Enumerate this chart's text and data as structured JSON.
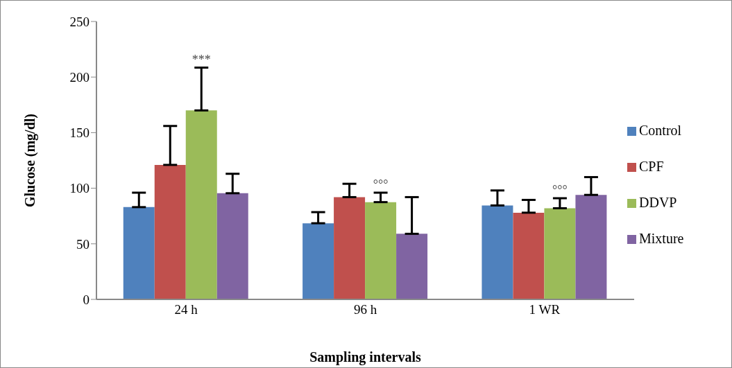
{
  "chart_data": {
    "type": "bar",
    "xlabel": "Sampling intervals",
    "ylabel": "Glucose (mg/dl)",
    "categories": [
      "24 h",
      "96 h",
      "1 WR"
    ],
    "series": [
      {
        "name": "Control",
        "color": "#4f81bd",
        "values": [
          83,
          68.5,
          84.5
        ],
        "errors": [
          [
            83,
            96
          ],
          [
            68.5,
            78.5
          ],
          [
            84.5,
            98
          ]
        ]
      },
      {
        "name": "CPF",
        "color": "#c0504d",
        "values": [
          121,
          92,
          78
        ],
        "errors": [
          [
            121,
            156
          ],
          [
            92,
            104
          ],
          [
            78,
            89.5
          ]
        ]
      },
      {
        "name": "DDVP",
        "color": "#9bbb59",
        "values": [
          170,
          87.5,
          82
        ],
        "errors": [
          [
            170,
            208.5
          ],
          [
            87.5,
            96
          ],
          [
            82,
            91
          ]
        ]
      },
      {
        "name": "Mixture",
        "color": "#8064a2",
        "values": [
          95.5,
          59,
          94
        ],
        "errors": [
          [
            95.5,
            113
          ],
          [
            59,
            92
          ],
          [
            94,
            110
          ]
        ]
      }
    ],
    "ylim": [
      0,
      250
    ],
    "yticks": [
      0,
      50,
      100,
      150,
      200,
      250
    ],
    "grid": false,
    "legend": "right",
    "annotations": [
      "***",
      {
        "text": "°°°",
        "x": "96 h",
        "y": 87.5
      },
      {
        "text": "°°°",
        "x": "1 WR",
        "y": 82
      }
    ]
  }
}
